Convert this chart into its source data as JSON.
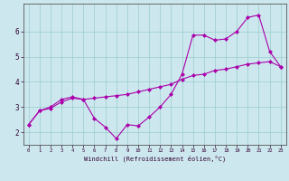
{
  "title": "",
  "xlabel": "Windchill (Refroidissement éolien,°C)",
  "ylabel": "",
  "bg_color": "#cce8ee",
  "line_color": "#aa00aa",
  "grid_color": "#99cccc",
  "xlim": [
    -0.5,
    23.5
  ],
  "ylim": [
    1.5,
    7.1
  ],
  "xticks": [
    0,
    1,
    2,
    3,
    4,
    5,
    6,
    7,
    8,
    9,
    10,
    11,
    12,
    13,
    14,
    15,
    16,
    17,
    18,
    19,
    20,
    21,
    22,
    23
  ],
  "yticks": [
    2,
    3,
    4,
    5,
    6
  ],
  "line1_x": [
    0,
    1,
    2,
    3,
    4,
    5,
    6,
    7,
    8,
    9,
    10,
    11,
    12,
    13,
    14,
    15,
    16,
    17,
    18,
    19,
    20,
    21,
    22,
    23
  ],
  "line1_y": [
    2.3,
    2.85,
    3.0,
    3.3,
    3.4,
    3.3,
    2.55,
    2.2,
    1.75,
    2.3,
    2.25,
    2.6,
    3.0,
    3.5,
    4.3,
    5.85,
    5.85,
    5.65,
    5.7,
    6.0,
    6.55,
    6.65,
    5.2,
    4.6
  ],
  "line2_x": [
    0,
    1,
    2,
    3,
    4,
    5,
    6,
    7,
    8,
    9,
    10,
    11,
    12,
    13,
    14,
    15,
    16,
    17,
    18,
    19,
    20,
    21,
    22,
    23
  ],
  "line2_y": [
    2.3,
    2.85,
    2.95,
    3.2,
    3.35,
    3.3,
    3.35,
    3.4,
    3.45,
    3.5,
    3.6,
    3.7,
    3.8,
    3.9,
    4.1,
    4.25,
    4.3,
    4.45,
    4.5,
    4.6,
    4.7,
    4.75,
    4.8,
    4.6
  ]
}
